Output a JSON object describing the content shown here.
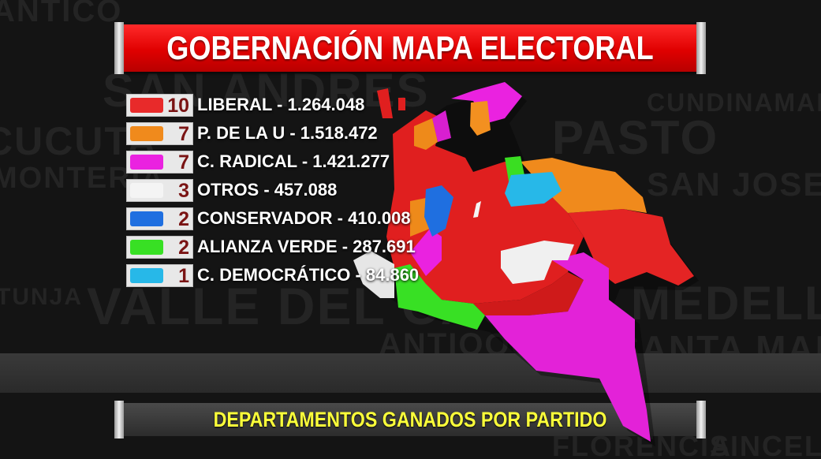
{
  "background": {
    "words": [
      "ANTICO",
      "SAN ANDRES",
      "CUNDINAMARCA",
      "CUCUTA",
      "PASTO",
      "SAN JOSE DE",
      "MONTERIA",
      "VALLE DEL CAUCA",
      "MEDELLIN",
      "TUNJA",
      "ANTIOQUIA",
      "SANTA MARTA",
      "FLORENCIA",
      "SINCELE"
    ]
  },
  "title": "GOBERNACIÓN MAPA ELECTORAL",
  "legend": [
    {
      "count": "10",
      "label": "LIBERAL - 1.264.048",
      "color": "#e82a2a"
    },
    {
      "count": "7",
      "label": "P. DE LA U - 1.518.472",
      "color": "#f08a1c"
    },
    {
      "count": "7",
      "label": "C. RADICAL - 1.421.277",
      "color": "#ea22e0"
    },
    {
      "count": "3",
      "label": "OTROS - 457.088",
      "color": "#f4f4f4"
    },
    {
      "count": "2",
      "label": "CONSERVADOR - 410.008",
      "color": "#1f6fe0"
    },
    {
      "count": "2",
      "label": "ALIANZA VERDE - 287.691",
      "color": "#38e024"
    },
    {
      "count": "1",
      "label": "C. DEMOCRÁTICO - 84.860",
      "color": "#27b8e8"
    }
  ],
  "subtitle": "DEPARTAMENTOS GANADOS POR PARTIDO",
  "colors": {
    "title_red": "#e00000",
    "subtitle_yellow": "#fbff3a"
  },
  "icons": [
    "colombia-map"
  ]
}
